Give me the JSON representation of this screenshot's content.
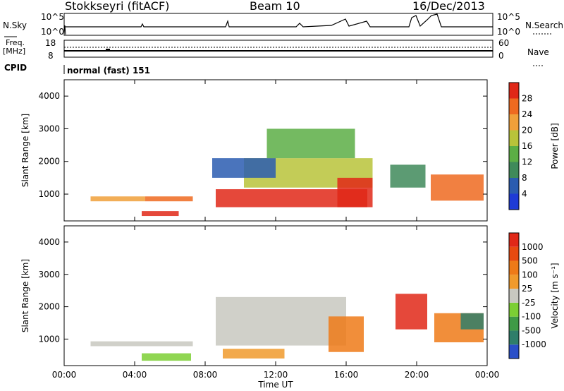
{
  "header": {
    "station": "Stokkseyri (fitACF)",
    "beam": "Beam 10",
    "date": "16/Dec/2013"
  },
  "noise_panel": {
    "left_label": "N.Sky",
    "right_label": "N.Search",
    "left_ticks": [
      "10^5",
      "10^0"
    ],
    "right_ticks": [
      "10^5",
      "10^0"
    ]
  },
  "freq_panel": {
    "label_line1": "Freq.",
    "label_line2": "[MHz]",
    "left_ticks": [
      "18",
      "8"
    ],
    "right_ticks": [
      "60",
      "0"
    ],
    "right_label": "Nave"
  },
  "cpid": {
    "label": "CPID",
    "value": "normal (fast) 151"
  },
  "time_axis": {
    "title": "Time UT",
    "ticks": [
      "00:00",
      "04:00",
      "08:00",
      "12:00",
      "16:00",
      "20:00",
      "00:00"
    ]
  },
  "chart_data": [
    {
      "type": "heatmap",
      "title": "",
      "ylabel": "Slant Range [km]",
      "xlabel": "Time UT",
      "ylim": [
        180,
        4500
      ],
      "y_ticks": [
        "1000",
        "2000",
        "3000",
        "4000"
      ],
      "colorbar_label": "Power [dB]",
      "colorbar_ticks": [
        "4",
        "8",
        "12",
        "16",
        "20",
        "24",
        "28"
      ],
      "colorbar_colors": [
        "#1e3bd6",
        "#2a5cb0",
        "#3f8a5a",
        "#5cae45",
        "#b8c33a",
        "#f0a03a",
        "#ee6a20",
        "#e02818"
      ],
      "series": [
        {
          "values": [
            {
              "t0": 1.5,
              "t1": 4.6,
              "r0": 780,
              "r1": 930,
              "level": 5
            },
            {
              "t0": 4.6,
              "t1": 7.3,
              "r0": 780,
              "r1": 930,
              "level": 6
            },
            {
              "t0": 4.4,
              "t1": 6.5,
              "r0": 330,
              "r1": 480,
              "level": 7
            },
            {
              "t0": 8.6,
              "t1": 17.2,
              "r0": 600,
              "r1": 1150,
              "level": 7
            },
            {
              "t0": 10.2,
              "t1": 17.5,
              "r0": 1200,
              "r1": 2100,
              "level": 4
            },
            {
              "t0": 8.4,
              "t1": 12.0,
              "r0": 1500,
              "r1": 2100,
              "level": 1
            },
            {
              "t0": 11.5,
              "t1": 16.5,
              "r0": 2100,
              "r1": 3000,
              "level": 3
            },
            {
              "t0": 15.5,
              "t1": 17.5,
              "r0": 600,
              "r1": 1500,
              "level": 7
            },
            {
              "t0": 20.8,
              "t1": 23.8,
              "r0": 800,
              "r1": 1600,
              "level": 6
            },
            {
              "t0": 18.5,
              "t1": 20.5,
              "r0": 1200,
              "r1": 1900,
              "level": 2
            }
          ]
        }
      ]
    },
    {
      "type": "heatmap",
      "title": "",
      "ylabel": "Slant Range [km]",
      "xlabel": "Time UT",
      "ylim": [
        180,
        4500
      ],
      "y_ticks": [
        "1000",
        "2000",
        "3000",
        "4000"
      ],
      "colorbar_label": "Velocity [m s⁻¹]",
      "colorbar_ticks": [
        "1000",
        "500",
        "100",
        "25",
        "-25",
        "-100",
        "-500",
        "-1000"
      ],
      "colorbar_colors": [
        "#2a4fc8",
        "#2f7e6a",
        "#3f9a46",
        "#7ccf34",
        "#c8c8c0",
        "#f09a2c",
        "#ee7a18",
        "#e84a10",
        "#e02818"
      ],
      "series": [
        {
          "values": [
            {
              "t0": 1.5,
              "t1": 7.3,
              "r0": 780,
              "r1": 930,
              "level": 4
            },
            {
              "t0": 4.4,
              "t1": 7.2,
              "r0": 330,
              "r1": 560,
              "level": 3
            },
            {
              "t0": 8.6,
              "t1": 16.0,
              "r0": 800,
              "r1": 2300,
              "level": 4
            },
            {
              "t0": 9.0,
              "t1": 12.5,
              "r0": 400,
              "r1": 700,
              "level": 5
            },
            {
              "t0": 15.0,
              "t1": 17.0,
              "r0": 600,
              "r1": 1700,
              "level": 6
            },
            {
              "t0": 18.8,
              "t1": 20.6,
              "r0": 1300,
              "r1": 2400,
              "level": 8
            },
            {
              "t0": 21.0,
              "t1": 23.8,
              "r0": 900,
              "r1": 1800,
              "level": 6
            },
            {
              "t0": 22.5,
              "t1": 23.8,
              "r0": 1300,
              "r1": 1800,
              "level": 1
            }
          ]
        }
      ]
    }
  ]
}
